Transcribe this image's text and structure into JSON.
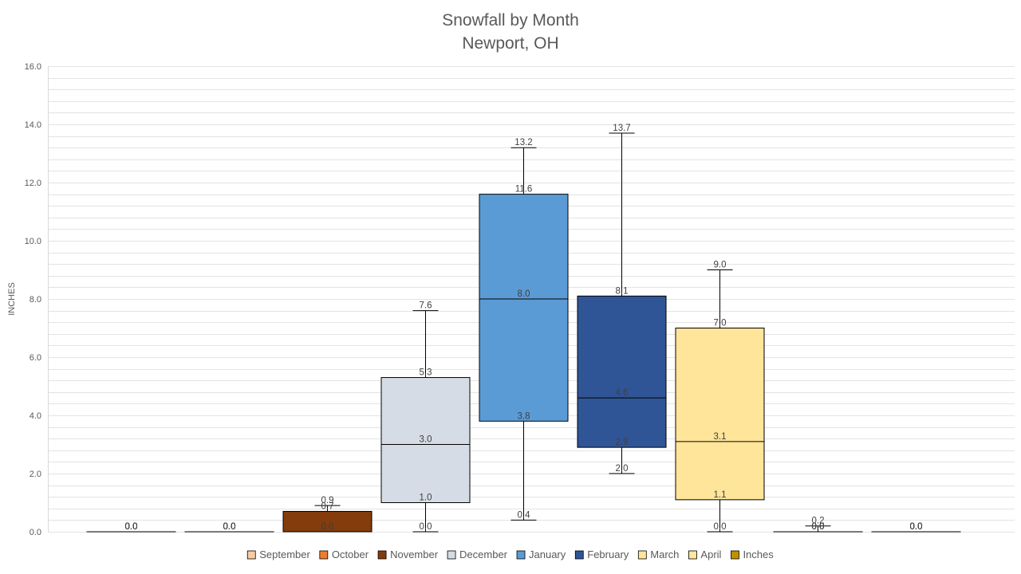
{
  "chart_data": {
    "type": "box",
    "title": "Snowfall by Month",
    "subtitle": "Newport, OH",
    "ylabel": "INCHES",
    "xlabel": "",
    "ylim": [
      0,
      16
    ],
    "yticks": [
      "0.0",
      "2.0",
      "4.0",
      "6.0",
      "8.0",
      "10.0",
      "12.0",
      "14.0",
      "16.0"
    ],
    "grid": true,
    "legend_position": "bottom",
    "legend": [
      "September",
      "October",
      "November",
      "December",
      "January",
      "February",
      "March",
      "April",
      "Inches"
    ],
    "legend_colors": [
      "#f8cba5",
      "#ed7d31",
      "#843c0c",
      "#d6dce5",
      "#5b9bd5",
      "#2f5597",
      "#fee599",
      "#ffe699",
      "#bf9000"
    ],
    "series": [
      {
        "name": "September",
        "color": "#f8cba5",
        "min": 0.0,
        "q1": 0.0,
        "median": 0.0,
        "q3": 0.0,
        "max": 0.0,
        "labels": [
          "0.0",
          "0.0",
          "0.0",
          "0.0",
          "0.0"
        ]
      },
      {
        "name": "October",
        "color": "#ed7d31",
        "min": 0.0,
        "q1": 0.0,
        "median": 0.0,
        "q3": 0.0,
        "max": 0.0,
        "labels": [
          "0.0",
          "0.0",
          "0.0",
          "0.0",
          "0.0"
        ]
      },
      {
        "name": "November",
        "color": "#843c0c",
        "min": 0.0,
        "q1": 0.0,
        "median": 0.0,
        "q3": 0.7,
        "max": 0.9,
        "labels": [
          "0.0",
          "0.0",
          "0.0",
          "0.7",
          "0.9"
        ]
      },
      {
        "name": "December",
        "color": "#d6dce5",
        "min": 0.0,
        "q1": 1.0,
        "median": 3.0,
        "q3": 5.3,
        "max": 7.6,
        "labels": [
          "0.0",
          "1.0",
          "3.0",
          "5.3",
          "7.6"
        ]
      },
      {
        "name": "January",
        "color": "#5b9bd5",
        "min": 0.4,
        "q1": 3.8,
        "median": 8.0,
        "q3": 11.6,
        "max": 13.2,
        "labels": [
          "0.4",
          "3.8",
          "8.0",
          "11.6",
          "13.2"
        ]
      },
      {
        "name": "February",
        "color": "#2f5597",
        "min": 2.0,
        "q1": 2.9,
        "median": 4.6,
        "q3": 8.1,
        "max": 13.7,
        "labels": [
          "2.0",
          "2.9",
          "4.6",
          "8.1",
          "13.7"
        ]
      },
      {
        "name": "March",
        "color": "#fee599",
        "min": 0.0,
        "q1": 1.1,
        "median": 3.1,
        "q3": 7.0,
        "max": 9.0,
        "labels": [
          "0.0",
          "1.1",
          "3.1",
          "7.0",
          "9.0"
        ]
      },
      {
        "name": "April",
        "color": "#ffe699",
        "min": 0.0,
        "q1": 0.0,
        "median": 0.0,
        "q3": 0.0,
        "max": 0.2,
        "labels": [
          "0.0",
          "0.0",
          "0.0",
          "0.0",
          "0.2"
        ]
      },
      {
        "name": "Inches",
        "color": "#bf9000",
        "min": 0.0,
        "q1": 0.0,
        "median": 0.0,
        "q3": 0.0,
        "max": 0.0,
        "labels": [
          "0.0",
          "0.0",
          "0.0",
          "0.0",
          "0.0"
        ]
      }
    ]
  }
}
